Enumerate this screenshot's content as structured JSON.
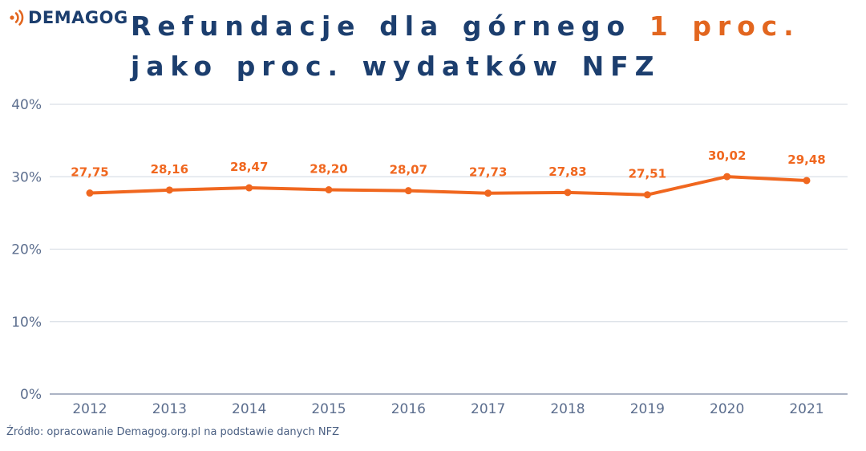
{
  "logo": {
    "text": "DEMAGOG",
    "icon": "sound-waves-icon"
  },
  "title": {
    "line1_main": "Refundacje dla górnego",
    "line1_accent": "1 proc.",
    "line2": "jako proc. wydatków NFZ"
  },
  "source": "Źródło: opracowanie Demagog.org.pl na podstawie danych NFZ",
  "colors": {
    "navy": "#1c3e6e",
    "accent_orange": "#e2661f",
    "line_orange": "#f0671f",
    "axis_label": "#5c6e8e",
    "gridline": "#dadfe6",
    "zero_line": "#909cb2",
    "source_text": "#4a5f82"
  },
  "chart_data": {
    "type": "line",
    "title": "Refundacje dla górnego 1 proc. jako proc. wydatków NFZ",
    "categories": [
      "2012",
      "2013",
      "2014",
      "2015",
      "2016",
      "2017",
      "2018",
      "2019",
      "2020",
      "2021"
    ],
    "values": [
      27.75,
      28.16,
      28.47,
      28.2,
      28.07,
      27.73,
      27.83,
      27.51,
      30.02,
      29.48
    ],
    "value_labels": [
      "27,75",
      "28,16",
      "28,47",
      "28,20",
      "28,07",
      "27,73",
      "27,83",
      "27,51",
      "30,02",
      "29,48"
    ],
    "xlabel": "",
    "ylabel": "",
    "ylim": [
      0,
      40
    ],
    "yticks": [
      {
        "value": 0,
        "label": "0%"
      },
      {
        "value": 10,
        "label": "10%"
      },
      {
        "value": 20,
        "label": "20%"
      },
      {
        "value": 30,
        "label": "30%"
      },
      {
        "value": 40,
        "label": "40%"
      }
    ],
    "grid": true,
    "legend": false
  }
}
